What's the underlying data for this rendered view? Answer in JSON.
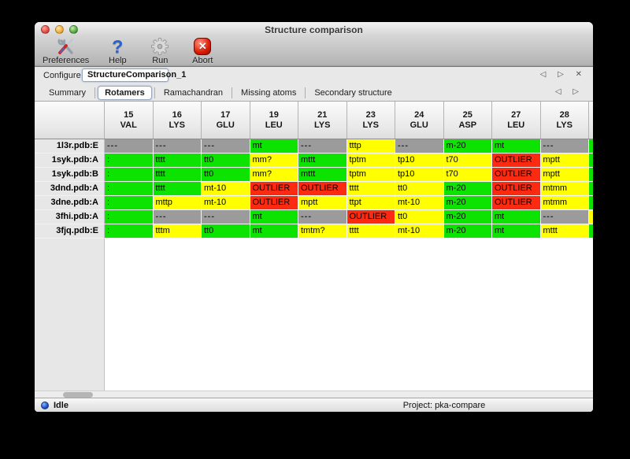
{
  "window": {
    "title": "Structure comparison"
  },
  "toolbar": {
    "items": [
      {
        "label": "Preferences",
        "icon": "tools-icon"
      },
      {
        "label": "Help",
        "icon": "help-icon"
      },
      {
        "label": "Run",
        "icon": "gear-icon"
      },
      {
        "label": "Abort",
        "icon": "abort-icon"
      }
    ],
    "help_glyph": "?",
    "abort_glyph": "✕"
  },
  "configure": {
    "label": "Configure",
    "value": "StructureComparison_1",
    "nav_glyphs": "◁ ▷ ✕"
  },
  "tabs": {
    "items": [
      "Summary",
      "Rotamers",
      "Ramachandran",
      "Missing atoms",
      "Secondary structure"
    ],
    "selected": "Rotamers",
    "nav_glyphs": "◁ ▷"
  },
  "table": {
    "colors": {
      "green": "#0ce300",
      "yellow": "#ffff00",
      "red": "#fd2a12",
      "gray": "#9b9b9b"
    },
    "columns": [
      {
        "num": "15",
        "res": "VAL"
      },
      {
        "num": "16",
        "res": "LYS"
      },
      {
        "num": "17",
        "res": "GLU"
      },
      {
        "num": "19",
        "res": "LEU"
      },
      {
        "num": "21",
        "res": "LYS"
      },
      {
        "num": "23",
        "res": "LYS"
      },
      {
        "num": "24",
        "res": "GLU"
      },
      {
        "num": "25",
        "res": "ASP"
      },
      {
        "num": "27",
        "res": "LEU"
      },
      {
        "num": "28",
        "res": "LYS"
      }
    ],
    "rows": [
      {
        "label": "1l3r.pdb:E",
        "partial": "green",
        "cells": [
          [
            "---",
            "gray"
          ],
          [
            "---",
            "gray"
          ],
          [
            "---",
            "gray"
          ],
          [
            "mt",
            "green"
          ],
          [
            "---",
            "gray"
          ],
          [
            "tttp",
            "yellow"
          ],
          [
            "---",
            "gray"
          ],
          [
            "m-20",
            "green"
          ],
          [
            "mt",
            "green"
          ],
          [
            "---",
            "gray"
          ]
        ]
      },
      {
        "label": "1syk.pdb:A",
        "partial": "green",
        "cells": [
          [
            ":",
            "green"
          ],
          [
            "tttt",
            "green"
          ],
          [
            "tt0",
            "green"
          ],
          [
            "mm?",
            "yellow"
          ],
          [
            "mttt",
            "green"
          ],
          [
            "tptm",
            "yellow"
          ],
          [
            "tp10",
            "yellow"
          ],
          [
            "t70",
            "yellow"
          ],
          [
            "OUTLIER",
            "red"
          ],
          [
            "mptt",
            "yellow"
          ]
        ]
      },
      {
        "label": "1syk.pdb:B",
        "partial": "green",
        "cells": [
          [
            ":",
            "green"
          ],
          [
            "tttt",
            "green"
          ],
          [
            "tt0",
            "green"
          ],
          [
            "mm?",
            "yellow"
          ],
          [
            "mttt",
            "green"
          ],
          [
            "tptm",
            "yellow"
          ],
          [
            "tp10",
            "yellow"
          ],
          [
            "t70",
            "yellow"
          ],
          [
            "OUTLIER",
            "red"
          ],
          [
            "mptt",
            "yellow"
          ]
        ]
      },
      {
        "label": "3dnd.pdb:A",
        "partial": "green",
        "cells": [
          [
            ":",
            "green"
          ],
          [
            "tttt",
            "green"
          ],
          [
            "mt-10",
            "yellow"
          ],
          [
            "OUTLIER",
            "red"
          ],
          [
            "OUTLIER",
            "red"
          ],
          [
            "tttt",
            "yellow"
          ],
          [
            "tt0",
            "yellow"
          ],
          [
            "m-20",
            "green"
          ],
          [
            "OUTLIER",
            "red"
          ],
          [
            "mtmm",
            "yellow"
          ]
        ]
      },
      {
        "label": "3dne.pdb:A",
        "partial": "green",
        "cells": [
          [
            ":",
            "green"
          ],
          [
            "mttp",
            "yellow"
          ],
          [
            "mt-10",
            "yellow"
          ],
          [
            "OUTLIER",
            "red"
          ],
          [
            "mptt",
            "yellow"
          ],
          [
            "ttpt",
            "yellow"
          ],
          [
            "mt-10",
            "yellow"
          ],
          [
            "m-20",
            "green"
          ],
          [
            "OUTLIER",
            "red"
          ],
          [
            "mtmm",
            "yellow"
          ]
        ]
      },
      {
        "label": "3fhi.pdb:A",
        "partial": "yellow",
        "cells": [
          [
            ":",
            "green"
          ],
          [
            "---",
            "gray"
          ],
          [
            "---",
            "gray"
          ],
          [
            "mt",
            "green"
          ],
          [
            "---",
            "gray"
          ],
          [
            "OUTLIER",
            "red"
          ],
          [
            "tt0",
            "yellow"
          ],
          [
            "m-20",
            "green"
          ],
          [
            "mt",
            "green"
          ],
          [
            "---",
            "gray"
          ]
        ]
      },
      {
        "label": "3fjq.pdb:E",
        "partial": "green",
        "cells": [
          [
            ":",
            "green"
          ],
          [
            "tttm",
            "yellow"
          ],
          [
            "tt0",
            "green"
          ],
          [
            "mt",
            "green"
          ],
          [
            "tmtm?",
            "yellow"
          ],
          [
            "tttt",
            "yellow"
          ],
          [
            "mt-10",
            "yellow"
          ],
          [
            "m-20",
            "green"
          ],
          [
            "mt",
            "green"
          ],
          [
            "mttt",
            "yellow"
          ]
        ]
      }
    ]
  },
  "statusbar": {
    "status": "Idle",
    "project": "Project: pka-compare"
  }
}
